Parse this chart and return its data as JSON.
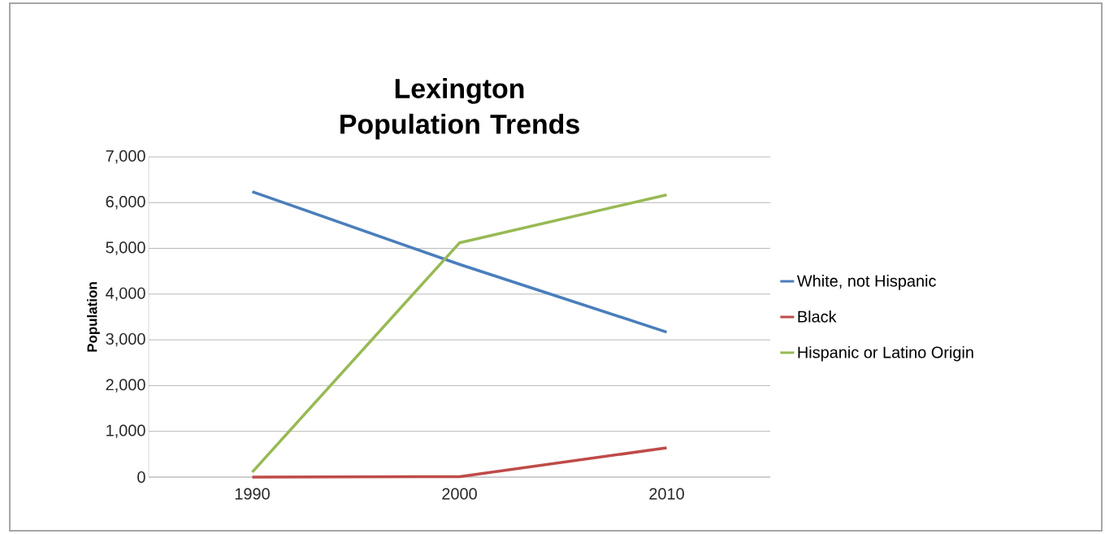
{
  "chart_data": {
    "type": "line",
    "title": "Lexington Population Trends",
    "ylabel": "Population",
    "categories": [
      "1990",
      "2000",
      "2010"
    ],
    "series": [
      {
        "name": "White, not Hispanic",
        "color": "#4a7ebb",
        "values": [
          6240,
          4650,
          3170
        ]
      },
      {
        "name": "Black",
        "color": "#be4b48",
        "values": [
          0,
          10,
          640
        ]
      },
      {
        "name": "Hispanic or Latino Origin",
        "color": "#98b954",
        "values": [
          110,
          5120,
          6170
        ]
      }
    ],
    "ylim": [
      0,
      7000
    ],
    "yticks": [
      {
        "value": 0,
        "label": "0"
      },
      {
        "value": 1000,
        "label": "1,000"
      },
      {
        "value": 2000,
        "label": "2,000"
      },
      {
        "value": 3000,
        "label": "3,000"
      },
      {
        "value": 4000,
        "label": "4,000"
      },
      {
        "value": 5000,
        "label": "5,000"
      },
      {
        "value": 6000,
        "label": "6,000"
      },
      {
        "value": 7000,
        "label": "7,000"
      }
    ],
    "grid": "y",
    "legend": "right",
    "marker": "none",
    "line_style": "solid"
  }
}
